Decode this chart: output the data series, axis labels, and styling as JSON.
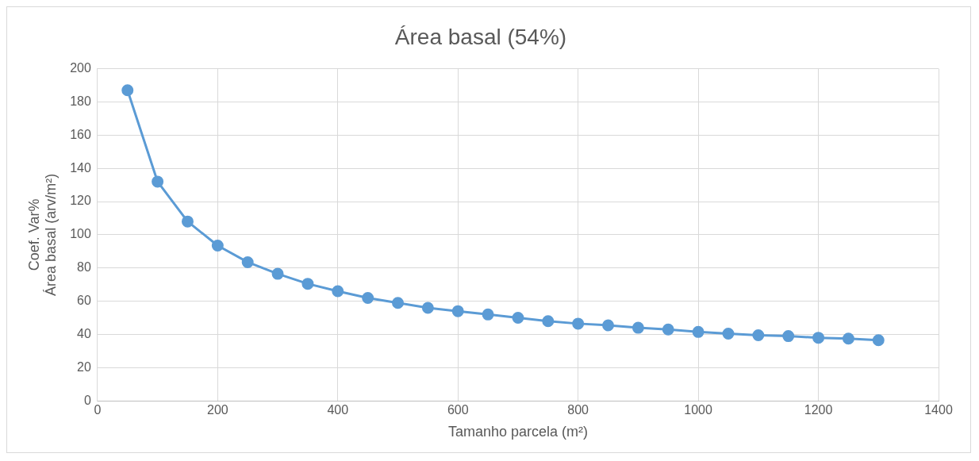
{
  "chart_data": {
    "type": "line",
    "title": "Área basal (54%)",
    "xlabel": "Tamanho parcela (m²)",
    "ylabel": "Coef. Var%\nÁrea basal (arv/m²)",
    "x": [
      50,
      100,
      150,
      200,
      250,
      300,
      350,
      400,
      450,
      500,
      550,
      600,
      650,
      700,
      750,
      800,
      850,
      900,
      950,
      1000,
      1050,
      1100,
      1150,
      1200,
      1250,
      1300
    ],
    "series": [
      {
        "color": "#5b9bd5",
        "values": [
          187,
          132,
          108,
          93.5,
          83.5,
          76.5,
          70.5,
          66,
          62,
          59,
          56,
          54,
          52,
          50,
          48,
          46.5,
          45.5,
          44,
          43,
          41.5,
          40.5,
          39.5,
          39,
          38,
          37.5,
          36.5
        ]
      }
    ],
    "xlim": [
      0,
      1400
    ],
    "xticks": [
      0,
      200,
      400,
      600,
      800,
      1000,
      1200,
      1400
    ],
    "ylim": [
      0,
      200
    ],
    "yticks": [
      0,
      20,
      40,
      60,
      80,
      100,
      120,
      140,
      160,
      180,
      200
    ],
    "grid": true,
    "legend": false,
    "marker": "circle",
    "line_style": "solid"
  }
}
